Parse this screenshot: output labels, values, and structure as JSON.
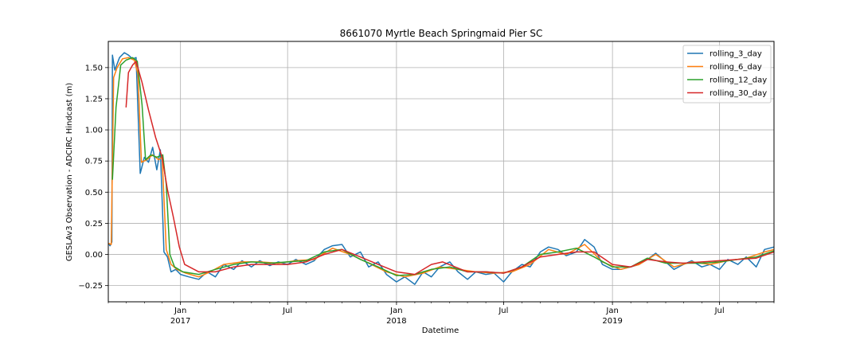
{
  "chart_data": {
    "type": "line",
    "title": "8661070 Myrtle Beach Springmaid Pier SC",
    "xlabel": "Datetime",
    "ylabel": "GESLAv3 Observation - ADCIRC Hindcast (m)",
    "xlim": [
      "2016-09-01",
      "2019-10-01"
    ],
    "ylim": [
      -0.38,
      1.71
    ],
    "grid": true,
    "legend_position": "top-right",
    "y_ticks": [
      {
        "value": -0.25,
        "label": "−0.25"
      },
      {
        "value": 0.0,
        "label": "0.00"
      },
      {
        "value": 0.25,
        "label": "0.25"
      },
      {
        "value": 0.5,
        "label": "0.50"
      },
      {
        "value": 0.75,
        "label": "0.75"
      },
      {
        "value": 1.0,
        "label": "1.00"
      },
      {
        "value": 1.25,
        "label": "1.25"
      },
      {
        "value": 1.5,
        "label": "1.50"
      }
    ],
    "x_ticks": [
      {
        "date": "2017-01-01",
        "label": "Jan",
        "sublabel": "2017",
        "grid": true
      },
      {
        "date": "2017-07-01",
        "label": "Jul",
        "sublabel": "",
        "grid": true
      },
      {
        "date": "2018-01-01",
        "label": "Jan",
        "sublabel": "2018",
        "grid": true
      },
      {
        "date": "2018-07-01",
        "label": "Jul",
        "sublabel": "",
        "grid": true
      },
      {
        "date": "2019-01-01",
        "label": "Jan",
        "sublabel": "2019",
        "grid": true
      },
      {
        "date": "2019-07-01",
        "label": "Jul",
        "sublabel": "",
        "grid": true
      }
    ],
    "series": [
      {
        "name": "rolling_3_day",
        "color": "#1f77b4",
        "points": [
          [
            "2016-09-01",
            0.09
          ],
          [
            "2016-09-04",
            0.07
          ],
          [
            "2016-09-07",
            0.1
          ],
          [
            "2016-09-08",
            1.6
          ],
          [
            "2016-09-12",
            1.48
          ],
          [
            "2016-09-20",
            1.58
          ],
          [
            "2016-09-28",
            1.62
          ],
          [
            "2016-10-05",
            1.6
          ],
          [
            "2016-10-12",
            1.57
          ],
          [
            "2016-10-18",
            1.58
          ],
          [
            "2016-10-25",
            0.65
          ],
          [
            "2016-11-01",
            0.78
          ],
          [
            "2016-11-08",
            0.74
          ],
          [
            "2016-11-15",
            0.86
          ],
          [
            "2016-11-22",
            0.68
          ],
          [
            "2016-11-28",
            0.84
          ],
          [
            "2016-12-04",
            0.02
          ],
          [
            "2016-12-10",
            -0.02
          ],
          [
            "2016-12-16",
            -0.14
          ],
          [
            "2016-12-24",
            -0.12
          ],
          [
            "2017-01-01",
            -0.16
          ],
          [
            "2017-01-15",
            -0.18
          ],
          [
            "2017-02-01",
            -0.2
          ],
          [
            "2017-02-15",
            -0.14
          ],
          [
            "2017-03-01",
            -0.18
          ],
          [
            "2017-03-15",
            -0.08
          ],
          [
            "2017-04-01",
            -0.12
          ],
          [
            "2017-04-15",
            -0.05
          ],
          [
            "2017-05-01",
            -0.1
          ],
          [
            "2017-05-15",
            -0.05
          ],
          [
            "2017-06-01",
            -0.09
          ],
          [
            "2017-06-15",
            -0.06
          ],
          [
            "2017-07-01",
            -0.08
          ],
          [
            "2017-07-15",
            -0.04
          ],
          [
            "2017-08-01",
            -0.08
          ],
          [
            "2017-08-15",
            -0.05
          ],
          [
            "2017-09-01",
            0.04
          ],
          [
            "2017-09-15",
            0.07
          ],
          [
            "2017-10-01",
            0.08
          ],
          [
            "2017-10-15",
            -0.02
          ],
          [
            "2017-11-01",
            0.02
          ],
          [
            "2017-11-15",
            -0.1
          ],
          [
            "2017-12-01",
            -0.06
          ],
          [
            "2017-12-15",
            -0.16
          ],
          [
            "2018-01-01",
            -0.22
          ],
          [
            "2018-01-15",
            -0.18
          ],
          [
            "2018-02-01",
            -0.24
          ],
          [
            "2018-02-15",
            -0.14
          ],
          [
            "2018-03-01",
            -0.18
          ],
          [
            "2018-03-15",
            -0.1
          ],
          [
            "2018-04-01",
            -0.06
          ],
          [
            "2018-04-15",
            -0.14
          ],
          [
            "2018-05-01",
            -0.2
          ],
          [
            "2018-05-15",
            -0.14
          ],
          [
            "2018-06-01",
            -0.16
          ],
          [
            "2018-06-15",
            -0.15
          ],
          [
            "2018-07-01",
            -0.22
          ],
          [
            "2018-07-15",
            -0.14
          ],
          [
            "2018-08-01",
            -0.08
          ],
          [
            "2018-08-15",
            -0.1
          ],
          [
            "2018-09-01",
            0.02
          ],
          [
            "2018-09-15",
            0.06
          ],
          [
            "2018-10-01",
            0.04
          ],
          [
            "2018-10-15",
            -0.01
          ],
          [
            "2018-11-01",
            0.02
          ],
          [
            "2018-11-15",
            0.12
          ],
          [
            "2018-12-01",
            0.06
          ],
          [
            "2018-12-15",
            -0.08
          ],
          [
            "2019-01-01",
            -0.12
          ],
          [
            "2019-01-15",
            -0.12
          ],
          [
            "2019-02-01",
            -0.1
          ],
          [
            "2019-02-15",
            -0.08
          ],
          [
            "2019-03-01",
            -0.04
          ],
          [
            "2019-03-15",
            0.01
          ],
          [
            "2019-04-01",
            -0.06
          ],
          [
            "2019-04-15",
            -0.12
          ],
          [
            "2019-05-01",
            -0.08
          ],
          [
            "2019-05-15",
            -0.05
          ],
          [
            "2019-06-01",
            -0.1
          ],
          [
            "2019-06-15",
            -0.08
          ],
          [
            "2019-07-01",
            -0.12
          ],
          [
            "2019-07-15",
            -0.04
          ],
          [
            "2019-08-01",
            -0.08
          ],
          [
            "2019-08-15",
            -0.02
          ],
          [
            "2019-09-01",
            -0.1
          ],
          [
            "2019-09-15",
            0.04
          ],
          [
            "2019-10-01",
            0.06
          ]
        ]
      },
      {
        "name": "rolling_6_day",
        "color": "#ff7f0e",
        "points": [
          [
            "2016-09-01",
            0.09
          ],
          [
            "2016-09-06",
            0.08
          ],
          [
            "2016-09-10",
            1.42
          ],
          [
            "2016-09-16",
            1.5
          ],
          [
            "2016-09-25",
            1.57
          ],
          [
            "2016-10-05",
            1.58
          ],
          [
            "2016-10-15",
            1.56
          ],
          [
            "2016-10-21",
            1.45
          ],
          [
            "2016-10-27",
            0.74
          ],
          [
            "2016-11-05",
            0.76
          ],
          [
            "2016-11-15",
            0.8
          ],
          [
            "2016-11-25",
            0.76
          ],
          [
            "2016-12-01",
            0.78
          ],
          [
            "2016-12-08",
            0.04
          ],
          [
            "2016-12-16",
            -0.08
          ],
          [
            "2016-12-26",
            -0.12
          ],
          [
            "2017-01-10",
            -0.15
          ],
          [
            "2017-02-01",
            -0.18
          ],
          [
            "2017-02-20",
            -0.14
          ],
          [
            "2017-03-15",
            -0.08
          ],
          [
            "2017-04-15",
            -0.06
          ],
          [
            "2017-05-15",
            -0.06
          ],
          [
            "2017-06-15",
            -0.07
          ],
          [
            "2017-07-15",
            -0.05
          ],
          [
            "2017-08-15",
            -0.04
          ],
          [
            "2017-09-15",
            0.05
          ],
          [
            "2017-10-15",
            0.0
          ],
          [
            "2017-11-15",
            -0.07
          ],
          [
            "2017-12-15",
            -0.14
          ],
          [
            "2018-01-15",
            -0.18
          ],
          [
            "2018-02-15",
            -0.15
          ],
          [
            "2018-03-15",
            -0.1
          ],
          [
            "2018-04-15",
            -0.12
          ],
          [
            "2018-05-15",
            -0.14
          ],
          [
            "2018-06-15",
            -0.15
          ],
          [
            "2018-07-15",
            -0.14
          ],
          [
            "2018-08-15",
            -0.08
          ],
          [
            "2018-09-15",
            0.04
          ],
          [
            "2018-10-15",
            0.0
          ],
          [
            "2018-11-15",
            0.08
          ],
          [
            "2018-12-15",
            -0.06
          ],
          [
            "2019-01-15",
            -0.12
          ],
          [
            "2019-02-15",
            -0.08
          ],
          [
            "2019-03-15",
            0.0
          ],
          [
            "2019-04-15",
            -0.1
          ],
          [
            "2019-05-15",
            -0.06
          ],
          [
            "2019-06-15",
            -0.08
          ],
          [
            "2019-07-15",
            -0.05
          ],
          [
            "2019-08-15",
            -0.03
          ],
          [
            "2019-09-15",
            0.02
          ],
          [
            "2019-10-01",
            0.04
          ]
        ]
      },
      {
        "name": "rolling_12_day",
        "color": "#2ca02c",
        "points": [
          [
            "2016-09-08",
            0.6
          ],
          [
            "2016-09-14",
            1.18
          ],
          [
            "2016-09-22",
            1.52
          ],
          [
            "2016-10-01",
            1.56
          ],
          [
            "2016-10-12",
            1.58
          ],
          [
            "2016-10-20",
            1.55
          ],
          [
            "2016-10-28",
            1.2
          ],
          [
            "2016-11-03",
            0.76
          ],
          [
            "2016-11-12",
            0.8
          ],
          [
            "2016-11-22",
            0.78
          ],
          [
            "2016-12-02",
            0.8
          ],
          [
            "2016-12-08",
            0.56
          ],
          [
            "2016-12-14",
            0.0
          ],
          [
            "2016-12-22",
            -0.1
          ],
          [
            "2017-01-05",
            -0.14
          ],
          [
            "2017-02-01",
            -0.16
          ],
          [
            "2017-03-01",
            -0.12
          ],
          [
            "2017-04-01",
            -0.08
          ],
          [
            "2017-05-01",
            -0.06
          ],
          [
            "2017-06-01",
            -0.07
          ],
          [
            "2017-07-01",
            -0.06
          ],
          [
            "2017-08-01",
            -0.05
          ],
          [
            "2017-09-01",
            0.02
          ],
          [
            "2017-10-01",
            0.04
          ],
          [
            "2017-11-01",
            -0.04
          ],
          [
            "2017-12-01",
            -0.1
          ],
          [
            "2018-01-01",
            -0.17
          ],
          [
            "2018-02-01",
            -0.16
          ],
          [
            "2018-03-01",
            -0.12
          ],
          [
            "2018-04-01",
            -0.1
          ],
          [
            "2018-05-01",
            -0.14
          ],
          [
            "2018-06-01",
            -0.14
          ],
          [
            "2018-07-01",
            -0.15
          ],
          [
            "2018-08-01",
            -0.1
          ],
          [
            "2018-09-01",
            0.0
          ],
          [
            "2018-10-01",
            0.02
          ],
          [
            "2018-11-01",
            0.05
          ],
          [
            "2018-12-01",
            -0.02
          ],
          [
            "2019-01-01",
            -0.1
          ],
          [
            "2019-02-01",
            -0.1
          ],
          [
            "2019-03-01",
            -0.03
          ],
          [
            "2019-04-01",
            -0.07
          ],
          [
            "2019-05-01",
            -0.07
          ],
          [
            "2019-06-01",
            -0.07
          ],
          [
            "2019-07-01",
            -0.06
          ],
          [
            "2019-08-01",
            -0.04
          ],
          [
            "2019-09-01",
            -0.02
          ],
          [
            "2019-10-01",
            0.03
          ]
        ]
      },
      {
        "name": "rolling_30_day",
        "color": "#d62728",
        "points": [
          [
            "2016-10-01",
            1.18
          ],
          [
            "2016-10-05",
            1.46
          ],
          [
            "2016-10-12",
            1.52
          ],
          [
            "2016-10-18",
            1.55
          ],
          [
            "2016-10-28",
            1.38
          ],
          [
            "2016-11-08",
            1.16
          ],
          [
            "2016-11-20",
            0.94
          ],
          [
            "2016-12-01",
            0.78
          ],
          [
            "2016-12-10",
            0.52
          ],
          [
            "2016-12-20",
            0.3
          ],
          [
            "2016-12-30",
            0.06
          ],
          [
            "2017-01-08",
            -0.08
          ],
          [
            "2017-02-01",
            -0.14
          ],
          [
            "2017-03-01",
            -0.14
          ],
          [
            "2017-04-01",
            -0.1
          ],
          [
            "2017-05-01",
            -0.08
          ],
          [
            "2017-06-01",
            -0.08
          ],
          [
            "2017-07-01",
            -0.08
          ],
          [
            "2017-08-01",
            -0.06
          ],
          [
            "2017-09-01",
            0.0
          ],
          [
            "2017-10-01",
            0.04
          ],
          [
            "2017-11-01",
            -0.02
          ],
          [
            "2017-12-01",
            -0.08
          ],
          [
            "2018-01-01",
            -0.14
          ],
          [
            "2018-02-01",
            -0.16
          ],
          [
            "2018-03-01",
            -0.08
          ],
          [
            "2018-03-20",
            -0.06
          ],
          [
            "2018-05-01",
            -0.14
          ],
          [
            "2018-06-01",
            -0.14
          ],
          [
            "2018-07-01",
            -0.15
          ],
          [
            "2018-08-01",
            -0.1
          ],
          [
            "2018-09-01",
            -0.02
          ],
          [
            "2018-10-01",
            0.0
          ],
          [
            "2018-11-01",
            0.02
          ],
          [
            "2018-12-01",
            0.02
          ],
          [
            "2019-01-01",
            -0.08
          ],
          [
            "2019-02-01",
            -0.1
          ],
          [
            "2019-03-01",
            -0.04
          ],
          [
            "2019-04-01",
            -0.06
          ],
          [
            "2019-05-01",
            -0.07
          ],
          [
            "2019-06-01",
            -0.06
          ],
          [
            "2019-07-01",
            -0.05
          ],
          [
            "2019-08-01",
            -0.04
          ],
          [
            "2019-09-01",
            -0.03
          ],
          [
            "2019-10-01",
            0.02
          ]
        ]
      }
    ]
  }
}
